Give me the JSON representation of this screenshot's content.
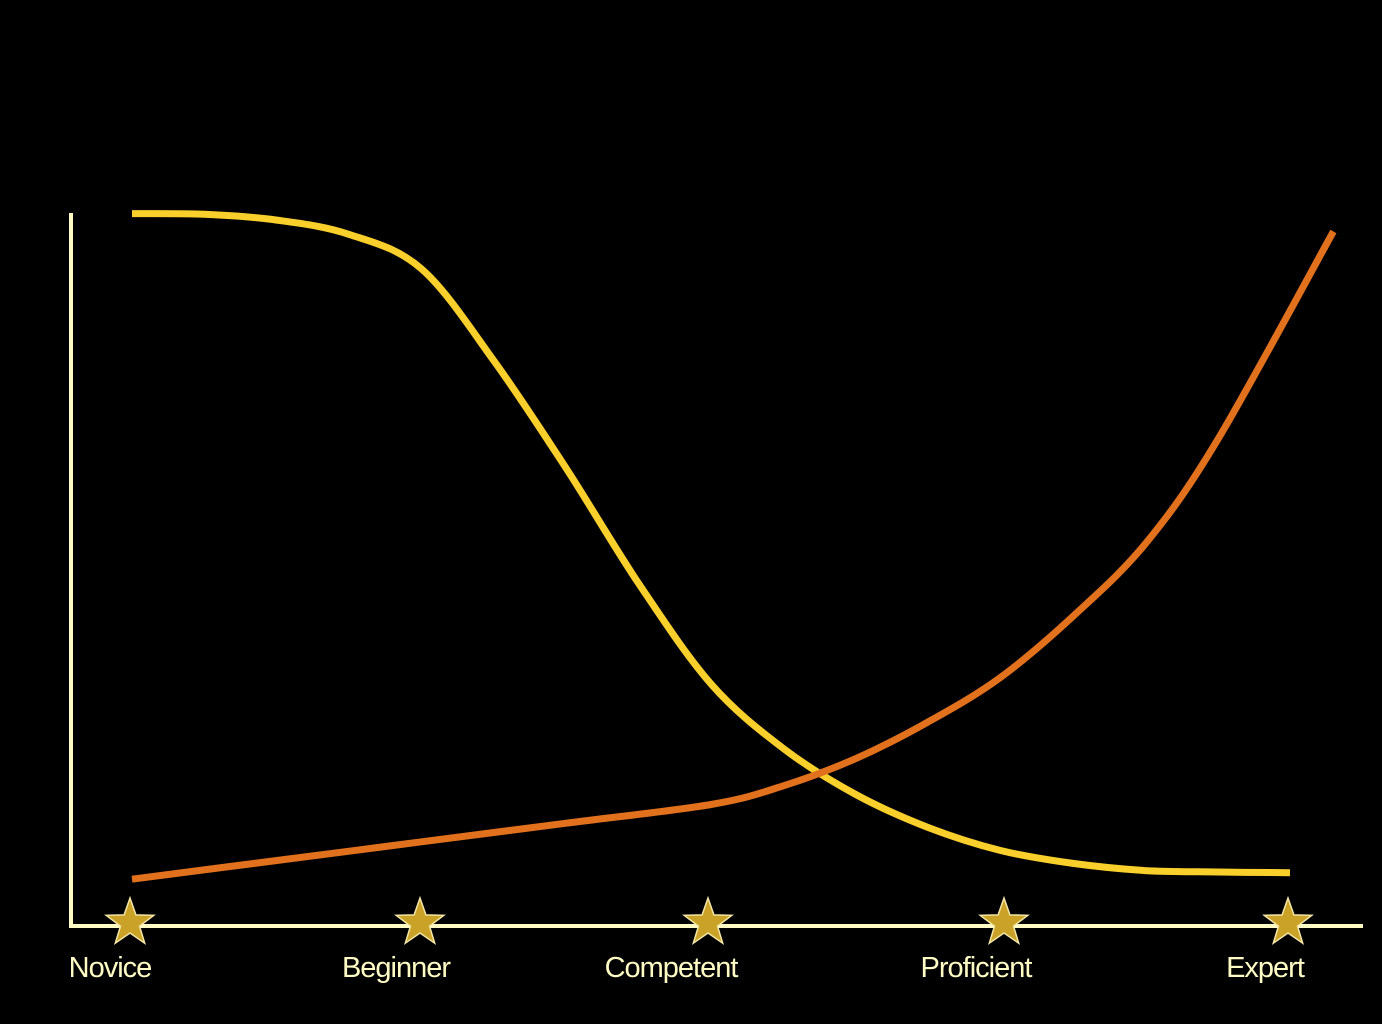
{
  "chart_data": {
    "type": "line",
    "title": "",
    "xlabel": "",
    "ylabel": "",
    "categories": [
      "Novice",
      "Beginner",
      "Competent",
      "Proficient",
      "Expert"
    ],
    "x": [
      0,
      0.5,
      1,
      1.5,
      2,
      2.5,
      3,
      3.5,
      4
    ],
    "ylim": [
      0,
      100
    ],
    "grid": false,
    "legend": "none",
    "series": [
      {
        "color": "#F9CF2C",
        "x": [
          0,
          0.25,
          0.5,
          0.75,
          1,
          1.25,
          1.5,
          1.75,
          2,
          2.25,
          2.5,
          2.75,
          3,
          3.25,
          3.5,
          3.75,
          4
        ],
        "values": [
          99.5,
          99.4,
          98.6,
          96.6,
          91.8,
          79,
          64,
          48,
          34,
          25,
          18.6,
          14,
          10.8,
          9,
          8,
          7.8,
          7.7
        ]
      },
      {
        "color": "#E2711D",
        "x": [
          0,
          0.5,
          1,
          1.5,
          2,
          2.25,
          2.5,
          2.75,
          3,
          3.25,
          3.5,
          3.75,
          4.15
        ],
        "values": [
          6.8,
          9.4,
          12,
          14.6,
          17.2,
          19.8,
          23.6,
          28.7,
          34.9,
          43.4,
          53.5,
          68,
          97
        ]
      }
    ],
    "markers": {
      "shape": "star-icon",
      "color": "#C9A227"
    },
    "axis_color": "#FFFBC4",
    "label_color": "#FFFBC4"
  }
}
